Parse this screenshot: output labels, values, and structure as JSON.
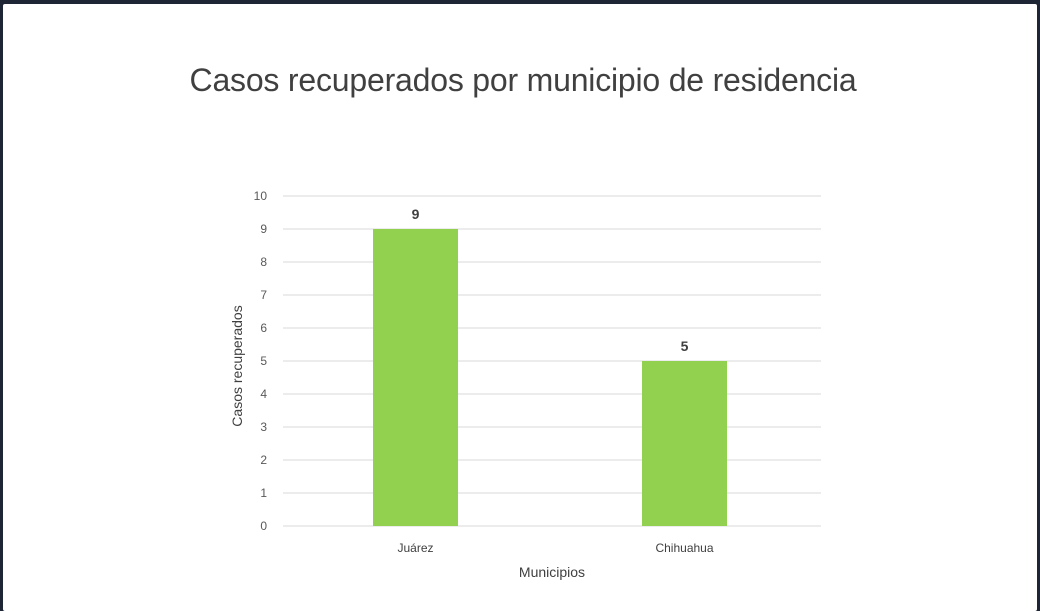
{
  "chart_data": {
    "type": "bar",
    "title": "Casos recuperados por municipio de residencia",
    "xlabel": "Municipios",
    "ylabel": "Casos recuperados",
    "categories": [
      "Juárez",
      "Chihuahua"
    ],
    "values": [
      9,
      5
    ],
    "ylim": [
      0,
      10
    ],
    "yticks": [
      0,
      1,
      2,
      3,
      4,
      5,
      6,
      7,
      8,
      9,
      10
    ],
    "data_labels": [
      "9",
      "5"
    ],
    "grid": true,
    "legend": "none",
    "colors": {
      "bar": "#92D050",
      "grid": "#D9D9D9",
      "axis": "#D9D9D9"
    }
  }
}
